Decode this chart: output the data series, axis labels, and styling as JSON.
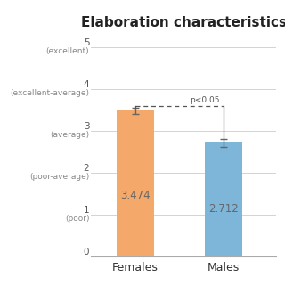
{
  "title": "Elaboration characteristics",
  "categories": [
    "Females",
    "Males"
  ],
  "values": [
    3.474,
    2.712
  ],
  "bar_colors": [
    "#F4A96A",
    "#7EB6D9"
  ],
  "error_bars": [
    0.08,
    0.09
  ],
  "bar_labels": [
    "3.474",
    "2.712"
  ],
  "yticks": [
    0,
    1,
    2,
    3,
    4,
    5
  ],
  "ytick_descriptors": [
    "",
    "(poor)",
    "(poor-average)",
    "(average)",
    "(excellent-average)",
    "(excellent)"
  ],
  "ytick_numbers": [
    "0",
    "1",
    "2",
    "3",
    "4",
    "5"
  ],
  "ylim": [
    0,
    5.3
  ],
  "xlim": [
    -0.5,
    1.6
  ],
  "significance_label": "p<0.05",
  "title_fontsize": 11,
  "label_fontsize": 9,
  "tick_num_fontsize": 7.5,
  "tick_desc_fontsize": 6.5,
  "bar_label_fontsize": 8.5,
  "sig_fontsize": 6.5,
  "background_color": "#ffffff"
}
